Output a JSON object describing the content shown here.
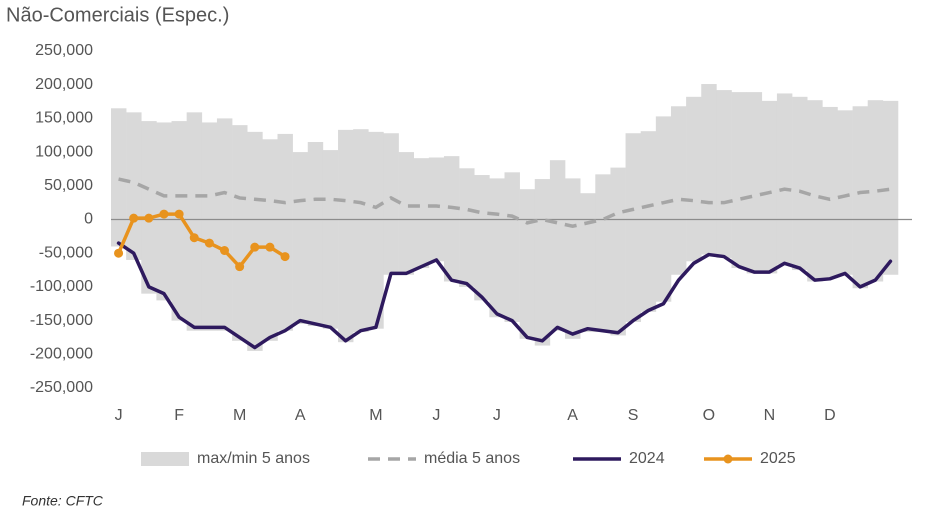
{
  "chart_data": {
    "type": "line",
    "title": "Não-Comerciais (Espec.)",
    "source": "Fonte: CFTC",
    "x": [
      1,
      2,
      3,
      4,
      5,
      6,
      7,
      8,
      9,
      10,
      11,
      12,
      13,
      14,
      15,
      16,
      17,
      18,
      19,
      20,
      21,
      22,
      23,
      24,
      25,
      26,
      27,
      28,
      29,
      30,
      31,
      32,
      33,
      34,
      35,
      36,
      37,
      38,
      39,
      40,
      41,
      42,
      43,
      44,
      45,
      46,
      47,
      48,
      49,
      50,
      51,
      52
    ],
    "xlim": [
      0.5,
      52.5
    ],
    "xticks": [
      {
        "value": 1,
        "label": "J"
      },
      {
        "value": 5,
        "label": "F"
      },
      {
        "value": 9,
        "label": "M"
      },
      {
        "value": 13,
        "label": "A"
      },
      {
        "value": 18,
        "label": "M"
      },
      {
        "value": 22,
        "label": "J"
      },
      {
        "value": 26,
        "label": "J"
      },
      {
        "value": 31,
        "label": "A"
      },
      {
        "value": 35,
        "label": "S"
      },
      {
        "value": 40,
        "label": "O"
      },
      {
        "value": 44,
        "label": "N"
      },
      {
        "value": 48,
        "label": "D"
      }
    ],
    "ylim": [
      -250000,
      250000
    ],
    "yticks": [
      {
        "value": 250000,
        "label": "250,000"
      },
      {
        "value": 200000,
        "label": "200,000"
      },
      {
        "value": 150000,
        "label": "150,000"
      },
      {
        "value": 100000,
        "label": "100,000"
      },
      {
        "value": 50000,
        "label": "50,000"
      },
      0,
      {
        "value": -50000,
        "label": "-50,000"
      },
      {
        "value": -100000,
        "label": "-100,000"
      },
      {
        "value": -150000,
        "label": "-150,000"
      },
      {
        "value": -200000,
        "label": "-200,000"
      },
      {
        "value": -250000,
        "label": "-250,000"
      }
    ],
    "series": [
      {
        "name": "max/min 5 anos",
        "style": "band",
        "color": "#d9d9d9",
        "high": [
          165000,
          159000,
          146000,
          144000,
          146000,
          159000,
          144000,
          150000,
          140000,
          130000,
          119000,
          127000,
          100000,
          115000,
          103000,
          133000,
          134000,
          130000,
          128000,
          100000,
          91000,
          92000,
          94000,
          76000,
          66000,
          61000,
          70000,
          45000,
          60000,
          88000,
          61000,
          39000,
          67000,
          77000,
          128000,
          131000,
          153000,
          168000,
          182000,
          201000,
          192000,
          189000,
          189000,
          176000,
          187000,
          182000,
          177000,
          167000,
          162000,
          168000,
          177000,
          176000
        ],
        "low": [
          -40000,
          -60000,
          -110000,
          -120000,
          -150000,
          -165000,
          -165000,
          -165000,
          -180000,
          -195000,
          -180000,
          -165000,
          -155000,
          -158000,
          -162000,
          -182000,
          -167000,
          -162000,
          -82000,
          -82000,
          -72000,
          -62000,
          -92000,
          -100000,
          -120000,
          -145000,
          -152000,
          -177000,
          -187000,
          -165000,
          -177000,
          -167000,
          -167000,
          -172000,
          -152000,
          -137000,
          -122000,
          -82000,
          -62000,
          -52000,
          -57000,
          -72000,
          -80000,
          -80000,
          -67000,
          -75000,
          -92000,
          -87000,
          -82000,
          -102000,
          -92000,
          -82000
        ]
      },
      {
        "name": "média 5 anos",
        "style": "dashed",
        "color": "#a6a6a6",
        "values": [
          60000,
          55000,
          45000,
          35000,
          35000,
          35000,
          35000,
          40000,
          32000,
          30000,
          28000,
          25000,
          28000,
          30000,
          30000,
          28000,
          25000,
          18000,
          32000,
          20000,
          20000,
          20000,
          18000,
          15000,
          10000,
          8000,
          5000,
          -5000,
          0,
          -5000,
          -10000,
          -5000,
          0,
          10000,
          15000,
          20000,
          25000,
          30000,
          28000,
          25000,
          25000,
          30000,
          35000,
          40000,
          45000,
          42000,
          35000,
          30000,
          35000,
          40000,
          42000,
          45000
        ]
      },
      {
        "name": "2024",
        "style": "solid",
        "color": "#2e1a5e",
        "values": [
          -35000,
          -50000,
          -100000,
          -110000,
          -145000,
          -160000,
          -160000,
          -160000,
          -175000,
          -190000,
          -175000,
          -165000,
          -150000,
          -155000,
          -160000,
          -180000,
          -165000,
          -160000,
          -80000,
          -80000,
          -70000,
          -60000,
          -90000,
          -95000,
          -115000,
          -140000,
          -150000,
          -175000,
          -180000,
          -160000,
          -170000,
          -162000,
          -165000,
          -168000,
          -150000,
          -135000,
          -125000,
          -90000,
          -65000,
          -52000,
          -55000,
          -70000,
          -78000,
          -78000,
          -65000,
          -72000,
          -90000,
          -88000,
          -80000,
          -100000,
          -90000,
          -62000
        ]
      },
      {
        "name": "2025",
        "style": "marker",
        "color": "#e8931e",
        "values": [
          -50000,
          2000,
          2000,
          8000,
          8000,
          -27000,
          -35000,
          -46000,
          -70000,
          -41000,
          -41000,
          -55000,
          null,
          null,
          null,
          null,
          null,
          null,
          null,
          null,
          null,
          null,
          null,
          null,
          null,
          null,
          null,
          null,
          null,
          null,
          null,
          null,
          null,
          null,
          null,
          null,
          null,
          null,
          null,
          null,
          null,
          null,
          null,
          null,
          null,
          null,
          null,
          null,
          null,
          null,
          null,
          null
        ]
      }
    ],
    "zero_line": true
  }
}
